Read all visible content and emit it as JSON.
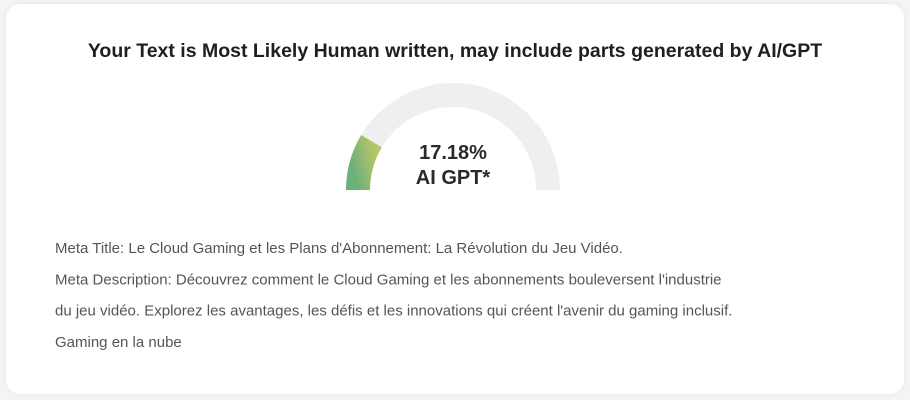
{
  "header": {
    "title": "Your Text is Most Likely Human written, may include parts generated by AI/GPT"
  },
  "gauge": {
    "value": 17.18,
    "value_label": "17.18%",
    "caption": "AI GPT*",
    "lim": [
      0,
      100
    ]
  },
  "body": {
    "lines": [
      "Meta Title: Le Cloud Gaming et les Plans d'Abonnement: La Révolution du Jeu Vidéo.",
      "Meta Description: Découvrez comment le Cloud Gaming et les abonnements bouleversent l'industrie",
      "du jeu vidéo. Explorez les avantages, les défis et les innovations qui créent l'avenir du gaming inclusif.",
      "Gaming en la nube"
    ]
  }
}
